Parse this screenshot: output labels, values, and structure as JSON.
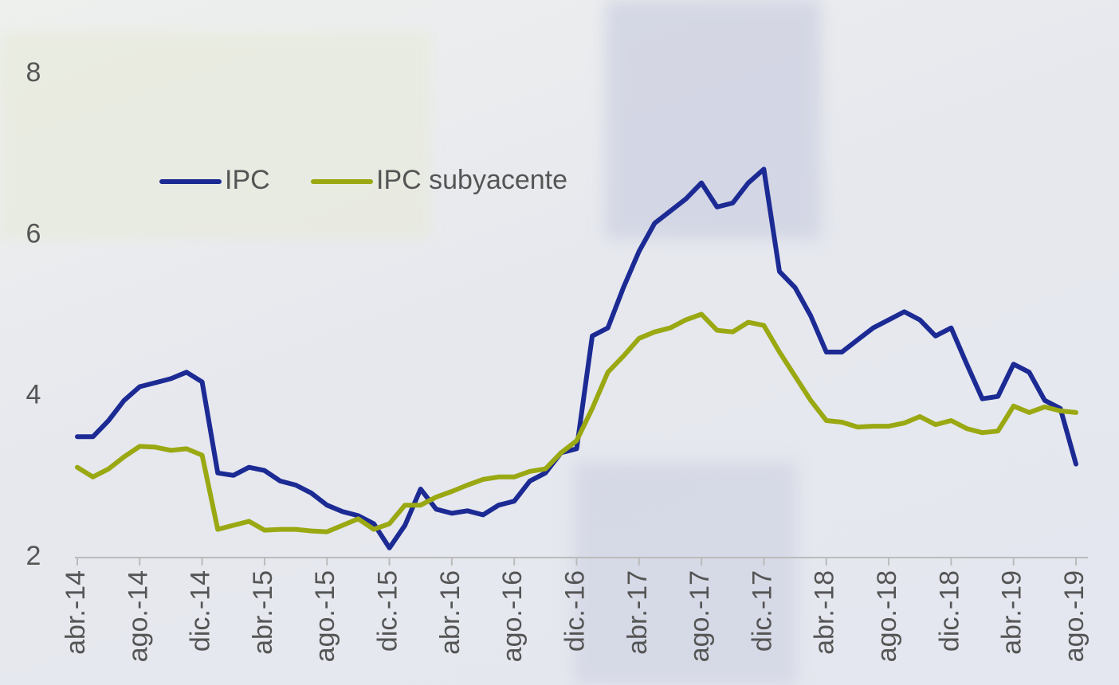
{
  "chart_data": {
    "type": "line",
    "categories": [
      "abr.-14",
      null,
      null,
      null,
      "ago.-14",
      null,
      null,
      null,
      "dic.-14",
      null,
      null,
      null,
      "abr.-15",
      null,
      null,
      null,
      "ago.-15",
      null,
      null,
      null,
      "dic.-15",
      null,
      null,
      null,
      "abr.-16",
      null,
      null,
      null,
      "ago.-16",
      null,
      null,
      null,
      "dic.-16",
      null,
      null,
      null,
      "abr.-17",
      null,
      null,
      null,
      "ago.-17",
      null,
      null,
      null,
      "dic.-17",
      null,
      null,
      null,
      "abr.-18",
      null,
      null,
      null,
      "ago.-18",
      null,
      null,
      null,
      "dic.-18",
      null,
      null,
      null,
      "abr.-19",
      null,
      null,
      null,
      "ago.-19"
    ],
    "series": [
      {
        "name": "IPC",
        "color": "#1c2a94",
        "values": [
          3.5,
          3.5,
          3.7,
          3.95,
          4.12,
          4.17,
          4.22,
          4.3,
          4.18,
          3.05,
          3.02,
          3.12,
          3.08,
          2.95,
          2.9,
          2.8,
          2.65,
          2.57,
          2.52,
          2.42,
          2.12,
          2.4,
          2.85,
          2.6,
          2.55,
          2.58,
          2.53,
          2.65,
          2.7,
          2.95,
          3.05,
          3.3,
          3.35,
          4.75,
          4.85,
          5.35,
          5.8,
          6.15,
          6.3,
          6.45,
          6.65,
          6.35,
          6.4,
          6.65,
          6.82,
          5.55,
          5.35,
          5.0,
          4.55,
          4.55,
          4.7,
          4.85,
          4.95,
          5.05,
          4.95,
          4.75,
          4.85,
          4.4,
          3.97,
          4.0,
          4.4,
          4.3,
          3.95,
          3.85,
          3.16
        ]
      },
      {
        "name": "IPC subyacente",
        "color": "#9aa812",
        "values": [
          3.12,
          3.0,
          3.1,
          3.25,
          3.38,
          3.37,
          3.33,
          3.35,
          3.27,
          2.35,
          2.4,
          2.45,
          2.34,
          2.35,
          2.35,
          2.33,
          2.32,
          2.4,
          2.48,
          2.35,
          2.42,
          2.65,
          2.65,
          2.75,
          2.82,
          2.9,
          2.97,
          3.0,
          3.0,
          3.07,
          3.1,
          3.3,
          3.45,
          3.85,
          4.3,
          4.5,
          4.72,
          4.8,
          4.85,
          4.95,
          5.02,
          4.82,
          4.8,
          4.92,
          4.88,
          4.55,
          4.25,
          3.95,
          3.7,
          3.68,
          3.62,
          3.63,
          3.63,
          3.67,
          3.75,
          3.65,
          3.7,
          3.6,
          3.55,
          3.57,
          3.88,
          3.8,
          3.87,
          3.82,
          3.8
        ]
      }
    ],
    "ylim": [
      2,
      8
    ],
    "yticks": [
      2,
      4,
      6,
      8
    ],
    "grid": false,
    "legend": "top-left"
  }
}
